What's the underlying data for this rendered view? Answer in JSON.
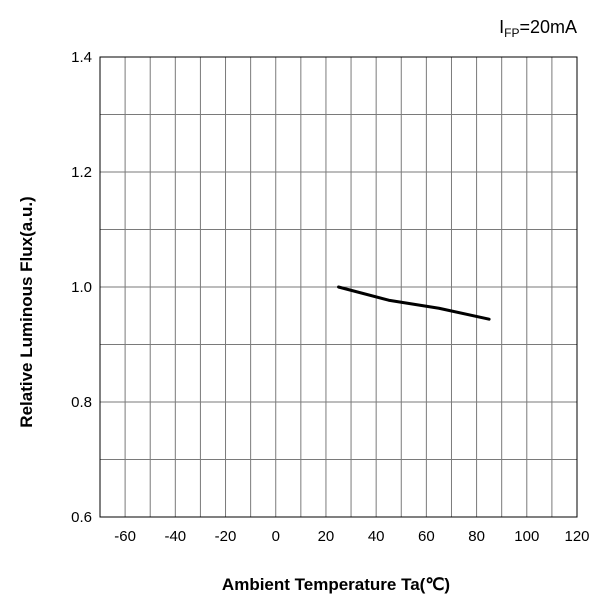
{
  "chart_data": {
    "type": "line",
    "annotation": {
      "symbol": "I",
      "subscript": "FP",
      "value": "=20mA"
    },
    "xlabel": "Ambient Temperature Ta(℃)",
    "ylabel": "Relative Luminous Flux(a.u.)",
    "xlim": [
      -70,
      120
    ],
    "ylim": [
      0.6,
      1.4
    ],
    "x_ticks": [
      "-60",
      "-40",
      "-20",
      "0",
      "20",
      "40",
      "60",
      "80",
      "100",
      "120"
    ],
    "y_ticks": [
      "0.6",
      "0.8",
      "1.0",
      "1.2",
      "1.4"
    ],
    "grid": true,
    "series": [
      {
        "color": "#000000",
        "x": [
          25,
          45,
          65,
          85
        ],
        "y": [
          1.0,
          0.977,
          0.963,
          0.944
        ]
      }
    ]
  }
}
